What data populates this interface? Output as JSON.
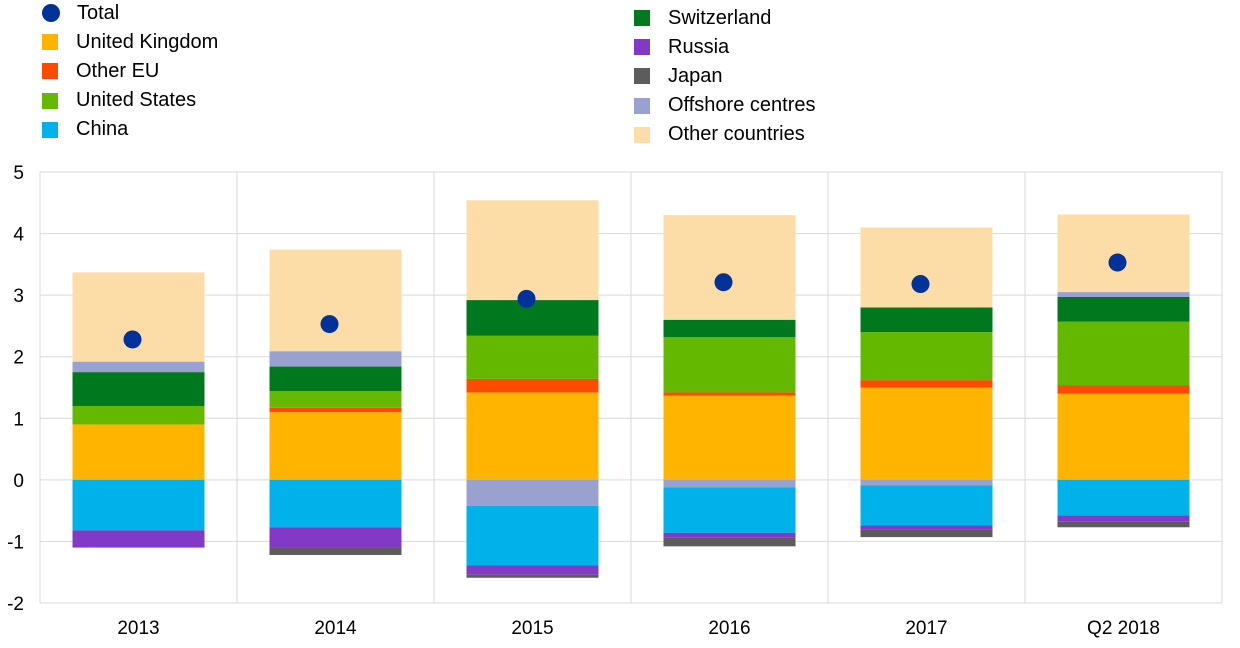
{
  "chart_data": {
    "type": "bar",
    "stacked": true,
    "categories": [
      "2013",
      "2014",
      "2015",
      "2016",
      "2017",
      "Q2 2018"
    ],
    "ylim": [
      -2,
      5
    ],
    "yticks": [
      -2,
      -1,
      0,
      1,
      2,
      3,
      4,
      5
    ],
    "grid": true,
    "legend_position": "top",
    "series": [
      {
        "name": "United Kingdom",
        "color": "#FFB400",
        "values": [
          0.9,
          1.1,
          1.42,
          1.37,
          1.5,
          1.4
        ]
      },
      {
        "name": "Other EU",
        "color": "#FF4B00",
        "values": [
          0.0,
          0.07,
          0.22,
          0.05,
          0.12,
          0.14
        ]
      },
      {
        "name": "United States",
        "color": "#65B800",
        "values": [
          0.3,
          0.27,
          0.7,
          0.9,
          0.78,
          1.03
        ]
      },
      {
        "name": "Switzerland",
        "color": "#00781E",
        "values": [
          0.55,
          0.4,
          0.58,
          0.28,
          0.4,
          0.4
        ]
      },
      {
        "name": "Offshore centres",
        "color": "#98A1D0",
        "values": [
          0.17,
          0.25,
          -0.42,
          -0.12,
          -0.09,
          0.08
        ]
      },
      {
        "name": "Other countries",
        "color": "#FDDDA7",
        "values": [
          1.45,
          1.65,
          1.62,
          1.7,
          1.3,
          1.26
        ]
      },
      {
        "name": "China",
        "color": "#00B1EA",
        "values": [
          -0.82,
          -0.77,
          -0.97,
          -0.74,
          -0.65,
          -0.58
        ]
      },
      {
        "name": "Russia",
        "color": "#8139C6",
        "values": [
          -0.28,
          -0.33,
          -0.15,
          -0.08,
          -0.06,
          -0.1
        ]
      },
      {
        "name": "Japan",
        "color": "#5C5C5C",
        "values": [
          0.0,
          -0.12,
          -0.05,
          -0.14,
          -0.13,
          -0.09
        ]
      }
    ],
    "total": {
      "name": "Total",
      "color": "#003299",
      "values": [
        2.28,
        2.53,
        2.94,
        3.21,
        3.18,
        3.53
      ]
    }
  },
  "legend": {
    "left": [
      "Total",
      "United Kingdom",
      "Other EU",
      "United States",
      "China"
    ],
    "right": [
      "Switzerland",
      "Russia",
      "Japan",
      "Offshore centres",
      "Other countries"
    ]
  }
}
